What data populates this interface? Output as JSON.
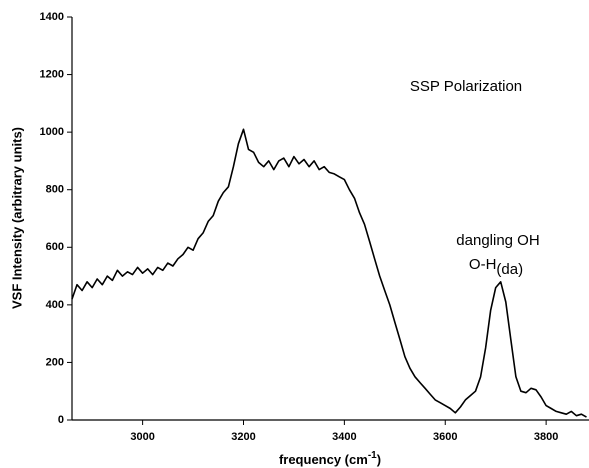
{
  "chart_data": {
    "type": "line",
    "ylabel": "VSF Intensity (arbitrary units)",
    "xlabel": {
      "text": "frequency (cm",
      "sup": "-1",
      "end": ")"
    },
    "annotations": [
      {
        "text": "SSP Polarization"
      },
      {
        "text": "dangling OH"
      },
      {
        "text": "O-H",
        "sub": "(da)"
      }
    ],
    "xlim": [
      2860,
      3885
    ],
    "ylim": [
      0,
      1400
    ],
    "xticks": [
      3000,
      3200,
      3400,
      3600,
      3800
    ],
    "yticks": [
      0,
      200,
      400,
      600,
      800,
      1000,
      1200,
      1400
    ],
    "color": "#000000",
    "x": [
      2860,
      2870,
      2880,
      2890,
      2900,
      2910,
      2920,
      2930,
      2940,
      2950,
      2960,
      2970,
      2980,
      2990,
      3000,
      3010,
      3020,
      3030,
      3040,
      3050,
      3060,
      3070,
      3080,
      3090,
      3100,
      3110,
      3120,
      3130,
      3140,
      3150,
      3160,
      3170,
      3180,
      3190,
      3200,
      3210,
      3220,
      3230,
      3240,
      3250,
      3260,
      3270,
      3280,
      3290,
      3300,
      3310,
      3320,
      3330,
      3340,
      3350,
      3360,
      3370,
      3380,
      3390,
      3400,
      3410,
      3420,
      3430,
      3440,
      3450,
      3460,
      3470,
      3480,
      3490,
      3500,
      3510,
      3520,
      3530,
      3540,
      3550,
      3560,
      3570,
      3580,
      3590,
      3600,
      3610,
      3620,
      3630,
      3640,
      3650,
      3660,
      3670,
      3680,
      3690,
      3700,
      3710,
      3720,
      3730,
      3740,
      3750,
      3760,
      3770,
      3780,
      3790,
      3800,
      3810,
      3820,
      3830,
      3840,
      3850,
      3860,
      3870,
      3880
    ],
    "values": [
      420,
      470,
      450,
      480,
      460,
      490,
      470,
      500,
      485,
      520,
      500,
      515,
      505,
      530,
      510,
      525,
      505,
      530,
      520,
      545,
      535,
      560,
      575,
      600,
      590,
      630,
      650,
      690,
      710,
      760,
      790,
      810,
      880,
      960,
      1010,
      940,
      930,
      895,
      880,
      900,
      870,
      900,
      910,
      880,
      915,
      890,
      905,
      880,
      900,
      870,
      880,
      860,
      855,
      845,
      835,
      800,
      770,
      720,
      680,
      620,
      560,
      500,
      450,
      400,
      340,
      280,
      220,
      180,
      150,
      130,
      110,
      90,
      70,
      60,
      50,
      40,
      25,
      45,
      70,
      85,
      100,
      150,
      250,
      380,
      460,
      480,
      410,
      280,
      150,
      100,
      95,
      110,
      105,
      80,
      50,
      40,
      30,
      25,
      20,
      30,
      15,
      20,
      10
    ]
  }
}
